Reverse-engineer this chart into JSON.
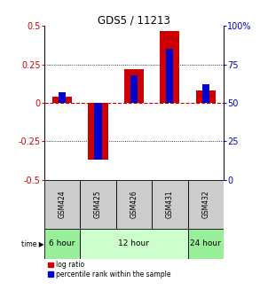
{
  "title": "GDS5 / 11213",
  "samples": [
    "GSM424",
    "GSM425",
    "GSM426",
    "GSM431",
    "GSM432"
  ],
  "log_ratio": [
    0.04,
    -0.37,
    0.22,
    0.47,
    0.08
  ],
  "percentile_rank": [
    57,
    13,
    68,
    85,
    62
  ],
  "ylim": [
    -0.5,
    0.5
  ],
  "yticks_left": [
    -0.5,
    -0.25,
    0,
    0.25,
    0.5
  ],
  "yticks_right": [
    0,
    25,
    50,
    75,
    100
  ],
  "bar_width": 0.55,
  "blue_bar_width": 0.2,
  "log_ratio_color": "#cc0000",
  "percentile_color": "#0000cc",
  "zero_line_color": "#cc0000",
  "grid_color": "#000000",
  "sample_bg_color": "#cccccc",
  "time_extents": [
    [
      0,
      0,
      "6 hour",
      "#99ee99"
    ],
    [
      1,
      3,
      "12 hour",
      "#ccffcc"
    ],
    [
      4,
      4,
      "24 hour",
      "#99ee99"
    ]
  ],
  "legend_log": "log ratio",
  "legend_pct": "percentile rank within the sample"
}
